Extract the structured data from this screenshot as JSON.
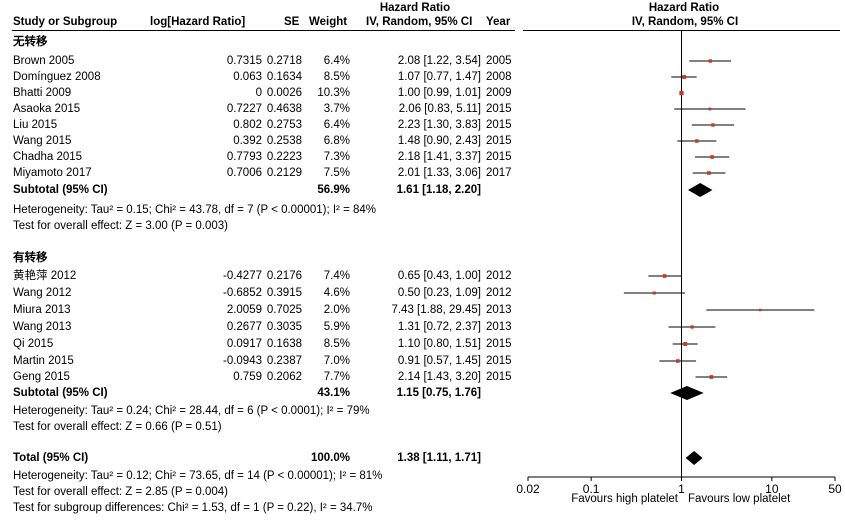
{
  "chart_data": {
    "type": "forest",
    "header": {
      "left_group": "Hazard Ratio",
      "right_group": "Hazard Ratio",
      "columns": [
        "Study or Subgroup",
        "log[Hazard Ratio]",
        "SE",
        "Weight",
        "IV, Random, 95% CI",
        "Year"
      ],
      "right_col": "IV, Random, 95% CI"
    },
    "x_scale": "log",
    "xlim": [
      0.02,
      50
    ],
    "x_ticks": [
      "0.02",
      "0.1",
      "1",
      "10",
      "50"
    ],
    "x_tick_values": [
      0.02,
      0.1,
      1,
      10,
      50
    ],
    "favours_left": "Favours high platelet",
    "favours_right": "Favours low platelet",
    "subgroups": [
      {
        "name": "无转移",
        "studies": [
          {
            "study": "Brown 2005",
            "log_hr": "0.7315",
            "se": "0.2718",
            "weight": "6.4%",
            "ci_text": "2.08 [1.22, 3.54]",
            "year": "2005",
            "hr": 2.08,
            "lo": 1.22,
            "hi": 3.54
          },
          {
            "study": "Domínguez 2008",
            "log_hr": "0.063",
            "se": "0.1634",
            "weight": "8.5%",
            "ci_text": "1.07 [0.77, 1.47]",
            "year": "2008",
            "hr": 1.07,
            "lo": 0.77,
            "hi": 1.47
          },
          {
            "study": "Bhatti 2009",
            "log_hr": "0",
            "se": "0.0026",
            "weight": "10.3%",
            "ci_text": "1.00 [0.99, 1.01]",
            "year": "2009",
            "hr": 1.0,
            "lo": 0.99,
            "hi": 1.01
          },
          {
            "study": "Asaoka 2015",
            "log_hr": "0.7227",
            "se": "0.4638",
            "weight": "3.7%",
            "ci_text": "2.06 [0.83, 5.11]",
            "year": "2015",
            "hr": 2.06,
            "lo": 0.83,
            "hi": 5.11
          },
          {
            "study": "Liu 2015",
            "log_hr": "0.802",
            "se": "0.2753",
            "weight": "6.4%",
            "ci_text": "2.23 [1.30, 3.83]",
            "year": "2015",
            "hr": 2.23,
            "lo": 1.3,
            "hi": 3.83
          },
          {
            "study": "Wang 2015",
            "log_hr": "0.392",
            "se": "0.2538",
            "weight": "6.8%",
            "ci_text": "1.48 [0.90, 2.43]",
            "year": "2015",
            "hr": 1.48,
            "lo": 0.9,
            "hi": 2.43
          },
          {
            "study": "Chadha 2015",
            "log_hr": "0.7793",
            "se": "0.2223",
            "weight": "7.3%",
            "ci_text": "2.18 [1.41, 3.37]",
            "year": "2015",
            "hr": 2.18,
            "lo": 1.41,
            "hi": 3.37
          },
          {
            "study": "Miyamoto 2017",
            "log_hr": "0.7006",
            "se": "0.2129",
            "weight": "7.5%",
            "ci_text": "2.01 [1.33, 3.06]",
            "year": "2017",
            "hr": 2.01,
            "lo": 1.33,
            "hi": 3.06
          }
        ],
        "subtotal": {
          "label": "Subtotal (95% CI)",
          "weight": "56.9%",
          "ci_text": "1.61 [1.18, 2.20]",
          "hr": 1.61,
          "lo": 1.18,
          "hi": 2.2
        },
        "heterogeneity": "Heterogeneity: Tau² = 0.15; Chi² = 43.78, df = 7 (P < 0.00001); I² = 84%",
        "overall_test": "Test for overall effect: Z = 3.00 (P = 0.003)"
      },
      {
        "name": "有转移",
        "studies": [
          {
            "study": "黄艳萍 2012",
            "log_hr": "-0.4277",
            "se": "0.2176",
            "weight": "7.4%",
            "ci_text": "0.65 [0.43, 1.00]",
            "year": "2012",
            "hr": 0.65,
            "lo": 0.43,
            "hi": 1.0
          },
          {
            "study": "Wang 2012",
            "log_hr": "-0.6852",
            "se": "0.3915",
            "weight": "4.6%",
            "ci_text": "0.50 [0.23, 1.09]",
            "year": "2012",
            "hr": 0.5,
            "lo": 0.23,
            "hi": 1.09
          },
          {
            "study": "Miura 2013",
            "log_hr": "2.0059",
            "se": "0.7025",
            "weight": "2.0%",
            "ci_text": "7.43 [1.88, 29.45]",
            "year": "2013",
            "hr": 7.43,
            "lo": 1.88,
            "hi": 29.45
          },
          {
            "study": "Wang 2013",
            "log_hr": "0.2677",
            "se": "0.3035",
            "weight": "5.9%",
            "ci_text": "1.31 [0.72, 2.37]",
            "year": "2013",
            "hr": 1.31,
            "lo": 0.72,
            "hi": 2.37
          },
          {
            "study": "Qi 2015",
            "log_hr": "0.0917",
            "se": "0.1638",
            "weight": "8.5%",
            "ci_text": "1.10 [0.80, 1.51]",
            "year": "2015",
            "hr": 1.1,
            "lo": 0.8,
            "hi": 1.51
          },
          {
            "study": "Martin 2015",
            "log_hr": "-0.0943",
            "se": "0.2387",
            "weight": "7.0%",
            "ci_text": "0.91 [0.57, 1.45]",
            "year": "2015",
            "hr": 0.91,
            "lo": 0.57,
            "hi": 1.45
          },
          {
            "study": "Geng  2015",
            "log_hr": "0.759",
            "se": "0.2062",
            "weight": "7.7%",
            "ci_text": "2.14 [1.43, 3.20]",
            "year": "2015",
            "hr": 2.14,
            "lo": 1.43,
            "hi": 3.2
          }
        ],
        "subtotal": {
          "label": "Subtotal (95% CI)",
          "weight": "43.1%",
          "ci_text": "1.15 [0.75, 1.76]",
          "hr": 1.15,
          "lo": 0.75,
          "hi": 1.76
        },
        "heterogeneity": "Heterogeneity: Tau² = 0.24; Chi² = 28.44, df = 6 (P < 0.0001); I² = 79%",
        "overall_test": "Test for overall effect: Z = 0.66 (P = 0.51)"
      }
    ],
    "total": {
      "label": "Total (95% CI)",
      "weight": "100.0%",
      "ci_text": "1.38 [1.11, 1.71]",
      "hr": 1.38,
      "lo": 1.11,
      "hi": 1.71,
      "heterogeneity": "Heterogeneity: Tau² = 0.12; Chi² = 73.65, df = 14 (P < 0.00001); I² = 81%",
      "overall_test": "Test for overall effect: Z = 2.85 (P = 0.004)",
      "subgroup_test": "Test for subgroup differences: Chi² = 1.53, df = 1 (P = 0.22), I² = 34.7%"
    },
    "colors": {
      "point": "#c0392b",
      "diamond": "#000000",
      "line": "#000000"
    }
  }
}
